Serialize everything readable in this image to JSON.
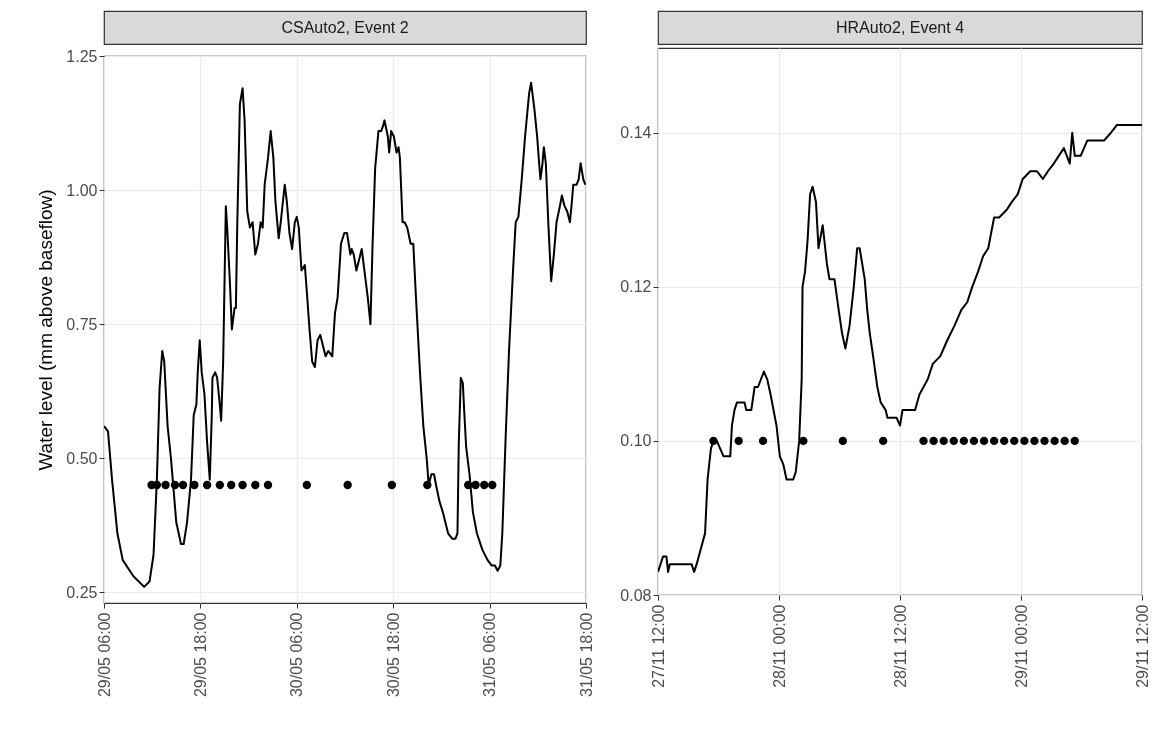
{
  "chart_data": [
    {
      "type": "line",
      "title": "CSAuto2, Event 2",
      "ylabel": "Water level (mm above baseflow)",
      "xlim": [
        "--05-29T06:00",
        "--05-31T18:00"
      ],
      "ylim": [
        0.23,
        1.25
      ],
      "xticks": [
        {
          "value": "--05-29T06:00",
          "label": "29/05 06:00"
        },
        {
          "value": "--05-29T18:00",
          "label": "29/05 18:00"
        },
        {
          "value": "--05-30T06:00",
          "label": "30/05 06:00"
        },
        {
          "value": "--05-30T18:00",
          "label": "30/05 18:00"
        },
        {
          "value": "--05-31T06:00",
          "label": "31/05 06:00"
        },
        {
          "value": "--05-31T18:00",
          "label": "31/05 18:00"
        }
      ],
      "yticks": [
        0.25,
        {
          "value": 0.5,
          "label": "0.50"
        },
        0.75,
        {
          "value": 1,
          "label": "1.00"
        },
        1.25
      ],
      "grid": true,
      "series": [
        {
          "type": "line",
          "color": "#000000",
          "line_style": "solid",
          "x": [
            "--05-29T06:00",
            "--05-29T06:30",
            "--05-29T07:00",
            "--05-29T07:40",
            "--05-29T08:20",
            "--05-29T09:40",
            "--05-29T11:00",
            "--05-29T11:40",
            "--05-29T12:10",
            "--05-29T12:35",
            "--05-29T12:55",
            "--05-29T13:15",
            "--05-29T13:30",
            "--05-29T13:55",
            "--05-29T14:20",
            "--05-29T15:00",
            "--05-29T15:35",
            "--05-29T15:55",
            "--05-29T16:20",
            "--05-29T16:50",
            "--05-29T17:10",
            "--05-29T17:30",
            "--05-29T17:40",
            "--05-29T17:55",
            "--05-29T18:10",
            "--05-29T18:30",
            "--05-29T18:50",
            "--05-29T19:10",
            "--05-29T19:25",
            "--05-29T19:30",
            "--05-29T19:50",
            "--05-29T20:05",
            "--05-29T20:25",
            "--05-29T20:35",
            "--05-29T20:50",
            "--05-29T21:10",
            "--05-29T21:20",
            "--05-29T21:40",
            "--05-29T21:55",
            "--05-29T22:15",
            "--05-29T22:25",
            "--05-29T22:35",
            "--05-29T22:55",
            "--05-29T23:15",
            "--05-29T23:30",
            "--05-29T23:50",
            "--05-30T00:10",
            "--05-30T00:30",
            "--05-30T00:50",
            "--05-30T01:10",
            "--05-30T01:30",
            "--05-30T01:45",
            "--05-30T02:00",
            "--05-30T02:25",
            "--05-30T02:45",
            "--05-30T03:05",
            "--05-30T03:20",
            "--05-30T03:45",
            "--05-30T04:00",
            "--05-30T04:30",
            "--05-30T04:45",
            "--05-30T05:05",
            "--05-30T05:25",
            "--05-30T05:45",
            "--05-30T06:00",
            "--05-30T06:15",
            "--05-30T06:35",
            "--05-30T07:00",
            "--05-30T07:15",
            "--05-30T07:35",
            "--05-30T07:55",
            "--05-30T08:15",
            "--05-30T08:35",
            "--05-30T08:55",
            "--05-30T09:15",
            "--05-30T09:35",
            "--05-30T09:55",
            "--05-30T10:25",
            "--05-30T10:45",
            "--05-30T11:05",
            "--05-30T11:30",
            "--05-30T11:55",
            "--05-30T12:15",
            "--05-30T12:40",
            "--05-30T12:50",
            "--05-30T13:05",
            "--05-30T13:25",
            "--05-30T13:45",
            "--05-30T14:05",
            "--05-30T14:25",
            "--05-30T14:50",
            "--05-30T15:10",
            "--05-30T15:25",
            "--05-30T15:45",
            "--05-30T16:10",
            "--05-30T16:30",
            "--05-30T16:45",
            "--05-30T16:55",
            "--05-30T17:20",
            "--05-30T17:30",
            "--05-30T17:45",
            "--05-30T18:05",
            "--05-30T18:25",
            "--05-30T18:40",
            "--05-30T18:50",
            "--05-30T19:10",
            "--05-30T19:25",
            "--05-30T19:45",
            "--05-30T20:10",
            "--05-30T20:30",
            "--05-30T20:50",
            "--05-30T21:20",
            "--05-30T21:45",
            "--05-30T22:10",
            "--05-30T22:25",
            "--05-30T22:45",
            "--05-30T23:05",
            "--05-30T23:20",
            "--05-30T23:45",
            "--05-31T00:10",
            "--05-31T00:50",
            "--05-31T01:20",
            "--05-31T01:45",
            "--05-31T02:00",
            "--05-31T02:10",
            "--05-31T02:25",
            "--05-31T02:40",
            "--05-31T02:50",
            "--05-31T03:05",
            "--05-31T03:30",
            "--05-31T03:55",
            "--05-31T04:25",
            "--05-31T05:05",
            "--05-31T05:45",
            "--05-31T06:15",
            "--05-31T06:40",
            "--05-31T07:00",
            "--05-31T07:20",
            "--05-31T07:35",
            "--05-31T08:00",
            "--05-31T08:25",
            "--05-31T08:55",
            "--05-31T09:15",
            "--05-31T09:35",
            "--05-31T10:00",
            "--05-31T10:25",
            "--05-31T10:55",
            "--05-31T11:10",
            "--05-31T11:35",
            "--05-31T11:55",
            "--05-31T12:10",
            "--05-31T12:20",
            "--05-31T12:35",
            "--05-31T12:45",
            "--05-31T13:00",
            "--05-31T13:20",
            "--05-31T13:40",
            "--05-31T14:00",
            "--05-31T14:20",
            "--05-31T14:45",
            "--05-31T15:00",
            "--05-31T15:20",
            "--05-31T15:40",
            "--05-31T16:00",
            "--05-31T16:15",
            "--05-31T16:25",
            "--05-31T16:50",
            "--05-31T17:05",
            "--05-31T17:20",
            "--05-31T17:40",
            "--05-31T17:55"
          ],
          "values": [
            0.56,
            0.55,
            0.46,
            0.36,
            0.31,
            0.28,
            0.26,
            0.27,
            0.32,
            0.46,
            0.63,
            0.7,
            0.68,
            0.56,
            0.5,
            0.38,
            0.34,
            0.34,
            0.38,
            0.46,
            0.58,
            0.6,
            0.66,
            0.72,
            0.66,
            0.62,
            0.53,
            0.46,
            0.58,
            0.65,
            0.66,
            0.65,
            0.6,
            0.57,
            0.68,
            0.97,
            0.93,
            0.83,
            0.74,
            0.78,
            0.78,
            0.93,
            1.16,
            1.19,
            1.13,
            0.96,
            0.93,
            0.94,
            0.88,
            0.9,
            0.94,
            0.93,
            1.01,
            1.06,
            1.11,
            1.06,
            0.98,
            0.91,
            0.94,
            1.01,
            0.98,
            0.92,
            0.89,
            0.94,
            0.95,
            0.93,
            0.85,
            0.86,
            0.81,
            0.74,
            0.68,
            0.67,
            0.72,
            0.73,
            0.71,
            0.69,
            0.7,
            0.69,
            0.77,
            0.8,
            0.9,
            0.92,
            0.92,
            0.88,
            0.89,
            0.88,
            0.85,
            0.87,
            0.89,
            0.85,
            0.8,
            0.75,
            0.89,
            1.04,
            1.11,
            1.11,
            1.12,
            1.13,
            1.1,
            1.07,
            1.11,
            1.1,
            1.07,
            1.08,
            1.06,
            0.94,
            0.94,
            0.93,
            0.9,
            0.9,
            0.8,
            0.66,
            0.56,
            0.5,
            0.45,
            0.47,
            0.47,
            0.45,
            0.42,
            0.4,
            0.36,
            0.35,
            0.35,
            0.36,
            0.53,
            0.65,
            0.64,
            0.59,
            0.52,
            0.47,
            0.4,
            0.36,
            0.33,
            0.31,
            0.3,
            0.3,
            0.29,
            0.3,
            0.36,
            0.54,
            0.7,
            0.85,
            0.94,
            0.95,
            1.02,
            1.1,
            1.18,
            1.2,
            1.15,
            1.1,
            1.05,
            1.02,
            1.05,
            1.08,
            1.05,
            0.93,
            0.83,
            0.88,
            0.94,
            0.97,
            0.99,
            0.97,
            0.96,
            0.94,
            0.98,
            1.01,
            1.01,
            1.02,
            1.05,
            1.02,
            1.01
          ]
        },
        {
          "type": "scatter",
          "color": "#000000",
          "marker": "circle",
          "x": [
            "--05-29T11:55",
            "--05-29T12:35",
            "--05-29T13:40",
            "--05-29T14:50",
            "--05-29T15:50",
            "--05-29T17:15",
            "--05-29T18:50",
            "--05-29T20:25",
            "--05-29T21:50",
            "--05-29T23:15",
            "--05-30T00:50",
            "--05-30T02:25",
            "--05-30T07:15",
            "--05-30T12:20",
            "--05-30T17:50",
            "--05-30T22:15",
            "--05-31T03:20",
            "--05-31T04:15",
            "--05-31T05:20",
            "--05-31T06:20"
          ],
          "values": [
            0.45,
            0.45,
            0.45,
            0.45,
            0.45,
            0.45,
            0.45,
            0.45,
            0.45,
            0.45,
            0.45,
            0.45,
            0.45,
            0.45,
            0.45,
            0.45,
            0.45,
            0.45,
            0.45,
            0.45
          ]
        }
      ]
    },
    {
      "type": "line",
      "title": "HRAuto2, Event 4",
      "xlim": [
        "--11-27T12:00",
        "--11-29T12:00"
      ],
      "ylim": [
        0.08,
        0.151
      ],
      "xticks": [
        {
          "value": "--11-27T12:00",
          "label": "27/11 12:00"
        },
        {
          "value": "--11-28T00:00",
          "label": "28/11 00:00"
        },
        {
          "value": "--11-28T12:00",
          "label": "28/11 12:00"
        },
        {
          "value": "--11-29T00:00",
          "label": "29/11 00:00"
        },
        {
          "value": "--11-29T12:00",
          "label": "29/11 12:00"
        }
      ],
      "yticks": [
        0.08,
        {
          "value": 0.1,
          "label": "0.10"
        },
        0.12,
        0.14
      ],
      "grid": true,
      "series": [
        {
          "type": "line",
          "color": "#000000",
          "line_style": "solid",
          "x": [
            "--11-27T12:00",
            "--11-27T12:30",
            "--11-27T12:50",
            "--11-27T13:00",
            "--11-27T13:10",
            "--11-27T15:20",
            "--11-27T15:35",
            "--11-27T15:50",
            "--11-27T16:15",
            "--11-27T16:40",
            "--11-27T16:55",
            "--11-27T17:15",
            "--11-27T17:30",
            "--11-27T17:50",
            "--11-27T18:10",
            "--11-27T18:30",
            "--11-27T19:10",
            "--11-27T19:20",
            "--11-27T19:35",
            "--11-27T19:50",
            "--11-27T20:35",
            "--11-27T20:45",
            "--11-27T21:15",
            "--11-27T21:35",
            "--11-27T21:55",
            "--11-27T22:30",
            "--11-27T22:50",
            "--11-27T23:10",
            "--11-27T23:45",
            "--11-28T00:05",
            "--11-28T00:25",
            "--11-28T00:45",
            "--11-28T01:25",
            "--11-28T01:40",
            "--11-28T02:00",
            "--11-28T02:15",
            "--11-28T02:20",
            "--11-28T02:35",
            "--11-28T02:50",
            "--11-28T03:05",
            "--11-28T03:20",
            "--11-28T03:40",
            "--11-28T03:55",
            "--11-28T04:20",
            "--11-28T04:45",
            "--11-28T05:00",
            "--11-28T05:30",
            "--11-28T05:55",
            "--11-28T06:15",
            "--11-28T06:35",
            "--11-28T07:00",
            "--11-28T07:25",
            "--11-28T07:45",
            "--11-28T08:00",
            "--11-28T08:30",
            "--11-28T08:45",
            "--11-28T09:00",
            "--11-28T09:20",
            "--11-28T09:45",
            "--11-28T10:05",
            "--11-28T10:35",
            "--11-28T10:45",
            "--11-28T11:40",
            "--11-28T12:00",
            "--11-28T12:15",
            "--11-28T13:30",
            "--11-28T13:55",
            "--11-28T14:20",
            "--11-28T14:45",
            "--11-28T15:15",
            "--11-28T16:00",
            "--11-28T16:40",
            "--11-28T17:25",
            "--11-28T18:05",
            "--11-28T18:40",
            "--11-28T19:10",
            "--11-28T19:45",
            "--11-28T20:15",
            "--11-28T20:45",
            "--11-28T21:20",
            "--11-28T21:50",
            "--11-28T22:35",
            "--11-28T23:05",
            "--11-28T23:40",
            "--11-29T00:10",
            "--11-29T00:55",
            "--11-29T01:35",
            "--11-29T02:10",
            "--11-29T02:40",
            "--11-29T03:15",
            "--11-29T03:45",
            "--11-29T04:15",
            "--11-29T04:50",
            "--11-29T05:05",
            "--11-29T05:20",
            "--11-29T05:55",
            "--11-29T06:35",
            "--11-29T07:10",
            "--11-29T08:15",
            "--11-29T08:55",
            "--11-29T09:30",
            "--11-29T10:30",
            "--11-29T11:05",
            "--11-29T12:00"
          ],
          "values": [
            0.083,
            0.085,
            0.085,
            0.083,
            0.084,
            0.084,
            0.083,
            0.084,
            0.086,
            0.088,
            0.095,
            0.099,
            0.1,
            0.1,
            0.099,
            0.098,
            0.098,
            0.102,
            0.104,
            0.105,
            0.105,
            0.104,
            0.104,
            0.107,
            0.107,
            0.109,
            0.108,
            0.106,
            0.102,
            0.098,
            0.097,
            0.095,
            0.095,
            0.096,
            0.1,
            0.108,
            0.12,
            0.122,
            0.126,
            0.132,
            0.133,
            0.131,
            0.125,
            0.128,
            0.123,
            0.121,
            0.121,
            0.117,
            0.114,
            0.112,
            0.115,
            0.12,
            0.125,
            0.125,
            0.121,
            0.117,
            0.114,
            0.111,
            0.107,
            0.105,
            0.104,
            0.103,
            0.103,
            0.102,
            0.104,
            0.104,
            0.106,
            0.107,
            0.108,
            0.11,
            0.111,
            0.113,
            0.115,
            0.117,
            0.118,
            0.12,
            0.122,
            0.124,
            0.125,
            0.129,
            0.129,
            0.13,
            0.131,
            0.132,
            0.134,
            0.135,
            0.135,
            0.134,
            0.135,
            0.136,
            0.137,
            0.138,
            0.136,
            0.14,
            0.137,
            0.137,
            0.139,
            0.139,
            0.139,
            0.14,
            0.141,
            0.141,
            0.141,
            0.141
          ]
        },
        {
          "type": "scatter",
          "color": "#000000",
          "marker": "circle",
          "x": [
            "--11-27T17:30",
            "--11-27T20:00",
            "--11-27T22:25",
            "--11-28T02:25",
            "--11-28T06:20",
            "--11-28T10:20",
            "--11-28T14:20",
            "--11-28T15:20",
            "--11-28T16:20",
            "--11-28T17:20",
            "--11-28T18:20",
            "--11-28T19:20",
            "--11-28T20:20",
            "--11-28T21:20",
            "--11-28T22:20",
            "--11-28T23:20",
            "--11-29T00:20",
            "--11-29T01:20",
            "--11-29T02:20",
            "--11-29T03:20",
            "--11-29T04:20",
            "--11-29T05:20"
          ],
          "values": [
            0.1,
            0.1,
            0.1,
            0.1,
            0.1,
            0.1,
            0.1,
            0.1,
            0.1,
            0.1,
            0.1,
            0.1,
            0.1,
            0.1,
            0.1,
            0.1,
            0.1,
            0.1,
            0.1,
            0.1,
            0.1,
            0.1
          ]
        }
      ]
    }
  ]
}
